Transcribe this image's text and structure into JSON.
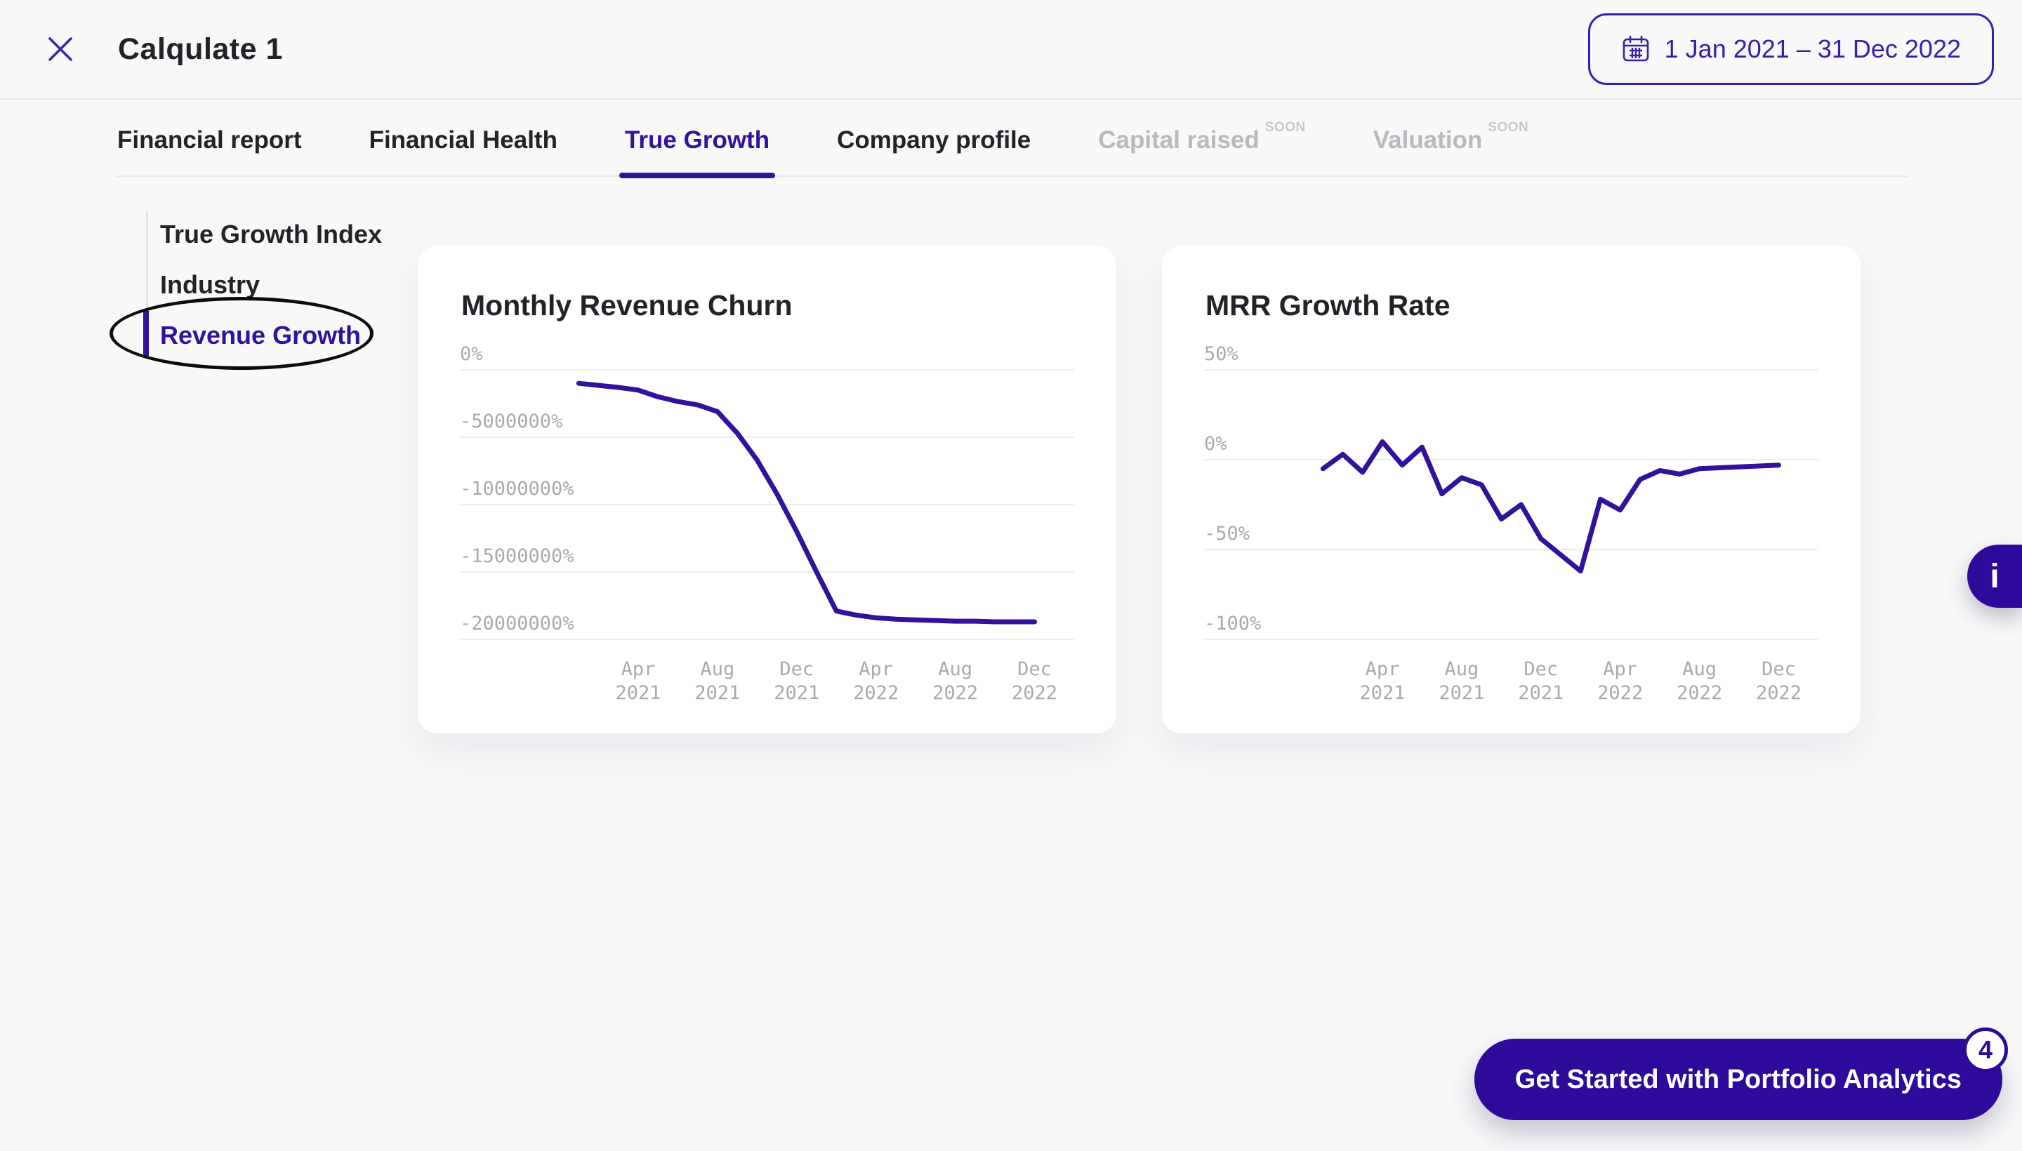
{
  "colors": {
    "bg": "#f8f8f9",
    "text": "#232228",
    "accent": "#32129d",
    "accent_deep": "#2e0a9b",
    "purple_text": "#3d1caa",
    "icon_purple": "#3b23a8",
    "muted_tab": "#b9b9bf",
    "soon": "#c7c7cc",
    "grid": "#ededf0",
    "tick": "#a9a9af"
  },
  "header": {
    "title": "Calqulate 1",
    "close_icon": "close-x",
    "date_range": {
      "icon": "calendar",
      "label": "1 Jan 2021 – 31 Dec 2022"
    }
  },
  "tabs": [
    {
      "label": "Financial report",
      "state": "default"
    },
    {
      "label": "Financial Health",
      "state": "default"
    },
    {
      "label": "True Growth",
      "state": "active"
    },
    {
      "label": "Company profile",
      "state": "default"
    },
    {
      "label": "Capital raised",
      "state": "disabled",
      "badge": "SOON"
    },
    {
      "label": "Valuation",
      "state": "disabled",
      "badge": "SOON"
    }
  ],
  "sidebar": {
    "items": [
      {
        "label": "True Growth Index",
        "active": false
      },
      {
        "label": "Industry",
        "active": false
      },
      {
        "label": "Revenue Growth",
        "active": true,
        "annotated": true
      }
    ]
  },
  "info_button": {
    "label": "i"
  },
  "cta": {
    "label": "Get Started with Portfolio Analytics",
    "badge": "4"
  },
  "chart_data": [
    {
      "type": "line",
      "title": "Monthly Revenue Churn",
      "xlabel": "",
      "ylabel": "",
      "legend": "none",
      "grid": "horizontal",
      "ylim": [
        -20000000,
        0
      ],
      "x_pad_left": 6,
      "x_pad_right": 2,
      "x": [
        "Jan 2021",
        "Feb 2021",
        "Mar 2021",
        "Apr 2021",
        "May 2021",
        "Jun 2021",
        "Jul 2021",
        "Aug 2021",
        "Sep 2021",
        "Oct 2021",
        "Nov 2021",
        "Dec 2021",
        "Jan 2022",
        "Feb 2022",
        "Mar 2022",
        "Apr 2022",
        "May 2022",
        "Jun 2022",
        "Jul 2022",
        "Aug 2022",
        "Sep 2022",
        "Oct 2022",
        "Nov 2022",
        "Dec 2022"
      ],
      "values": [
        -1000000,
        -1150000,
        -1300000,
        -1500000,
        -2000000,
        -2350000,
        -2600000,
        -3100000,
        -4700000,
        -6700000,
        -9200000,
        -12000000,
        -15000000,
        -17900000,
        -18200000,
        -18400000,
        -18500000,
        -18550000,
        -18600000,
        -18650000,
        -18650000,
        -18700000,
        -18700000,
        -18700000
      ],
      "yticks": [
        {
          "v": 0,
          "label": "0%"
        },
        {
          "v": -5000000,
          "label": "-5000000%"
        },
        {
          "v": -10000000,
          "label": "-10000000%"
        },
        {
          "v": -15000000,
          "label": "-15000000%"
        },
        {
          "v": -20000000,
          "label": "-20000000%"
        }
      ],
      "xticks": [
        {
          "i": 3,
          "top": "Apr",
          "bottom": "2021"
        },
        {
          "i": 7,
          "top": "Aug",
          "bottom": "2021"
        },
        {
          "i": 11,
          "top": "Dec",
          "bottom": "2021"
        },
        {
          "i": 15,
          "top": "Apr",
          "bottom": "2022"
        },
        {
          "i": 19,
          "top": "Aug",
          "bottom": "2022"
        },
        {
          "i": 23,
          "top": "Dec",
          "bottom": "2022"
        }
      ]
    },
    {
      "type": "line",
      "title": "MRR Growth Rate",
      "xlabel": "",
      "ylabel": "",
      "legend": "none",
      "grid": "horizontal",
      "ylim": [
        -100,
        50
      ],
      "x_pad_left": 6,
      "x_pad_right": 2,
      "x": [
        "Jan 2021",
        "Feb 2021",
        "Mar 2021",
        "Apr 2021",
        "May 2021",
        "Jun 2021",
        "Jul 2021",
        "Aug 2021",
        "Sep 2021",
        "Oct 2021",
        "Nov 2021",
        "Dec 2021",
        "Jan 2022",
        "Feb 2022",
        "Mar 2022",
        "Apr 2022",
        "May 2022",
        "Jun 2022",
        "Jul 2022",
        "Aug 2022",
        "Sep 2022",
        "Oct 2022",
        "Nov 2022",
        "Dec 2022"
      ],
      "values": [
        -5,
        3,
        -7,
        10,
        -3,
        7,
        -19,
        -10,
        -14,
        -33,
        -25,
        -44,
        -53,
        -62,
        -22,
        -28,
        -11,
        -6,
        -8,
        -5,
        -4.5,
        -4,
        -3.5,
        -3
      ],
      "yticks": [
        {
          "v": 50,
          "label": "50%"
        },
        {
          "v": 0,
          "label": "0%"
        },
        {
          "v": -50,
          "label": "-50%"
        },
        {
          "v": -100,
          "label": "-100%"
        }
      ],
      "xticks": [
        {
          "i": 3,
          "top": "Apr",
          "bottom": "2021"
        },
        {
          "i": 7,
          "top": "Aug",
          "bottom": "2021"
        },
        {
          "i": 11,
          "top": "Dec",
          "bottom": "2021"
        },
        {
          "i": 15,
          "top": "Apr",
          "bottom": "2022"
        },
        {
          "i": 19,
          "top": "Aug",
          "bottom": "2022"
        },
        {
          "i": 23,
          "top": "Dec",
          "bottom": "2022"
        }
      ]
    }
  ]
}
